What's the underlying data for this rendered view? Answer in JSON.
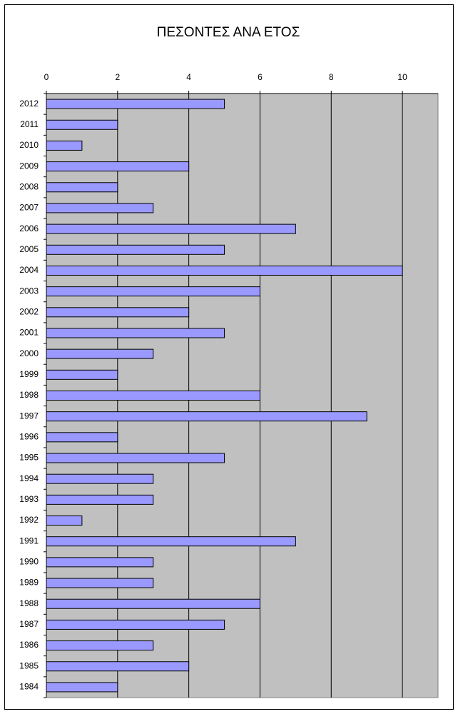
{
  "chart_data": {
    "type": "bar",
    "orientation": "horizontal",
    "title": "ΠΕΣΟΝΤΕΣ ΑΝΑ ΕΤΟΣ",
    "categories": [
      "2012",
      "2011",
      "2010",
      "2009",
      "2008",
      "2007",
      "2006",
      "2005",
      "2004",
      "2003",
      "2002",
      "2001",
      "2000",
      "1999",
      "1998",
      "1997",
      "1996",
      "1995",
      "1994",
      "1993",
      "1992",
      "1991",
      "1990",
      "1989",
      "1988",
      "1987",
      "1986",
      "1985",
      "1984"
    ],
    "values": [
      5,
      2,
      1,
      4,
      2,
      3,
      7,
      5,
      10,
      6,
      4,
      5,
      3,
      2,
      6,
      9,
      2,
      5,
      3,
      3,
      1,
      7,
      3,
      3,
      6,
      5,
      3,
      4,
      2
    ],
    "color": "#9999ff",
    "xlim": [
      0,
      11
    ],
    "xticks": [
      0,
      2,
      4,
      6,
      8,
      10
    ],
    "grid": true
  }
}
